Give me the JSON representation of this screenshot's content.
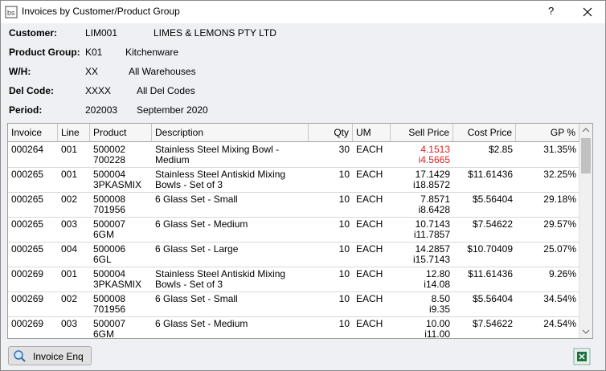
{
  "window": {
    "title": "Invoices by Customer/Product Group",
    "help": "?"
  },
  "fields": [
    {
      "label": "Customer:",
      "code": "LIM001",
      "name": "LIMES & LEMONS PTY LTD"
    },
    {
      "label": "Product Group:",
      "code": "K01",
      "name": "Kitchenware"
    },
    {
      "label": "W/H:",
      "code": "XX",
      "name": "All Warehouses"
    },
    {
      "label": "Del Code:",
      "code": "XXXX",
      "name": "All Del Codes"
    },
    {
      "label": "Period:",
      "code": "202003",
      "name": "September 2020"
    }
  ],
  "table": {
    "columns": [
      "Invoice",
      "Line",
      "Product",
      "Description",
      "Qty",
      "UM",
      "Sell Price",
      "Cost Price",
      "GP %"
    ],
    "rows": [
      {
        "invoice": "000264",
        "line": "001",
        "product": [
          "500002",
          "700228"
        ],
        "description": "Stainless Steel Mixing Bowl - Medium",
        "qty": "30",
        "um": "EACH",
        "sell_price": [
          "4.1513",
          "i4.5665"
        ],
        "sell_price_color": "#e02020",
        "cost_price": "$2.85",
        "gp": "31.35%"
      },
      {
        "invoice": "000265",
        "line": "001",
        "product": [
          "500004",
          "3PKASMIX"
        ],
        "description": "Stainless Steel Antiskid Mixing Bowls - Set of 3",
        "qty": "10",
        "um": "EACH",
        "sell_price": [
          "17.1429",
          "i18.8572"
        ],
        "cost_price": "$11.61436",
        "gp": "32.25%"
      },
      {
        "invoice": "000265",
        "line": "002",
        "product": [
          "500008",
          "701956"
        ],
        "description": "6 Glass Set - Small",
        "qty": "10",
        "um": "EACH",
        "sell_price": [
          "7.8571",
          "i8.6428"
        ],
        "cost_price": "$5.56404",
        "gp": "29.18%"
      },
      {
        "invoice": "000265",
        "line": "003",
        "product": [
          "500007",
          "6GM"
        ],
        "description": "6 Glass Set - Medium",
        "qty": "10",
        "um": "EACH",
        "sell_price": [
          "10.7143",
          "i11.7857"
        ],
        "cost_price": "$7.54622",
        "gp": "29.57%"
      },
      {
        "invoice": "000265",
        "line": "004",
        "product": [
          "500006",
          "6GL"
        ],
        "description": "6 Glass Set - Large",
        "qty": "10",
        "um": "EACH",
        "sell_price": [
          "14.2857",
          "i15.7143"
        ],
        "cost_price": "$10.70409",
        "gp": "25.07%"
      },
      {
        "invoice": "000269",
        "line": "001",
        "product": [
          "500004",
          "3PKASMIX"
        ],
        "description": "Stainless Steel Antiskid Mixing Bowls - Set of 3",
        "qty": "10",
        "um": "EACH",
        "sell_price": [
          "12.80",
          "i14.08"
        ],
        "cost_price": "$11.61436",
        "gp": "9.26%"
      },
      {
        "invoice": "000269",
        "line": "002",
        "product": [
          "500008",
          "701956"
        ],
        "description": "6 Glass Set - Small",
        "qty": "10",
        "um": "EACH",
        "sell_price": [
          "8.50",
          "i9.35"
        ],
        "cost_price": "$5.56404",
        "gp": "34.54%"
      },
      {
        "invoice": "000269",
        "line": "003",
        "product": [
          "500007",
          "6GM"
        ],
        "description": "6 Glass Set - Medium",
        "qty": "10",
        "um": "EACH",
        "sell_price": [
          "10.00",
          "i11.00"
        ],
        "cost_price": "$7.54622",
        "gp": "24.54%"
      }
    ]
  },
  "buttons": {
    "invoice_enq": "Invoice Enq"
  }
}
